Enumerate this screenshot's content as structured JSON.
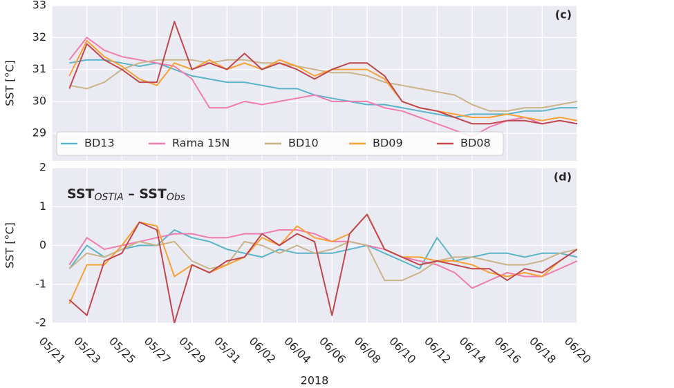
{
  "chart_data": [
    {
      "type": "line",
      "panel_label": "(c)",
      "ylabel": "SST [°C]",
      "x": [
        1,
        2,
        3,
        4,
        5,
        6,
        7,
        8,
        9,
        10,
        11,
        12,
        13,
        14,
        15,
        16,
        17,
        18,
        19,
        20,
        21,
        22,
        23,
        24,
        25,
        26,
        27,
        28,
        29,
        30
      ],
      "xlim": [
        0,
        30
      ],
      "xticks": [
        0,
        2,
        4,
        6,
        8,
        10,
        12,
        14,
        16,
        18,
        20,
        22,
        24,
        26,
        28,
        30
      ],
      "ylim": [
        28.14,
        33
      ],
      "yticks": [
        29,
        30,
        31,
        32,
        33
      ],
      "grid": true,
      "legend": "lower left",
      "series": [
        {
          "name": "BD13",
          "color": "#5ab4c8",
          "values": [
            31.2,
            31.3,
            31.3,
            31.2,
            31.1,
            31.2,
            31.0,
            30.8,
            30.7,
            30.6,
            30.6,
            30.5,
            30.4,
            30.4,
            30.2,
            30.1,
            30.0,
            29.9,
            29.9,
            29.8,
            29.7,
            29.6,
            29.5,
            29.6,
            29.6,
            29.6,
            29.7,
            29.7,
            29.8,
            29.8
          ]
        },
        {
          "name": "Rama 15N",
          "color": "#f07cb0",
          "values": [
            31.3,
            32.0,
            31.6,
            31.4,
            31.3,
            31.2,
            31.1,
            30.7,
            29.8,
            29.8,
            30.0,
            29.9,
            30.0,
            30.1,
            30.2,
            30.0,
            30.0,
            30.0,
            29.8,
            29.7,
            29.5,
            29.3,
            29.1,
            28.9,
            29.2,
            29.4,
            29.5,
            29.3,
            29.4,
            29.3
          ]
        },
        {
          "name": "BD10",
          "color": "#c9b48a",
          "values": [
            30.5,
            30.4,
            30.6,
            31.0,
            31.2,
            31.3,
            31.3,
            31.3,
            31.2,
            31.3,
            31.3,
            31.2,
            31.2,
            31.1,
            31.0,
            30.9,
            30.9,
            30.8,
            30.6,
            30.5,
            30.4,
            30.3,
            30.2,
            29.9,
            29.7,
            29.7,
            29.8,
            29.8,
            29.9,
            30.0
          ]
        },
        {
          "name": "BD09",
          "color": "#f7a035",
          "values": [
            30.8,
            31.9,
            31.4,
            31.1,
            30.7,
            30.5,
            31.2,
            31.0,
            31.3,
            31.0,
            31.2,
            31.0,
            31.3,
            31.1,
            30.8,
            31.0,
            31.0,
            31.0,
            30.7,
            30.0,
            29.8,
            29.7,
            29.6,
            29.5,
            29.5,
            29.6,
            29.5,
            29.4,
            29.5,
            29.4
          ]
        },
        {
          "name": "BD08",
          "color": "#c0464e",
          "values": [
            30.4,
            31.8,
            31.3,
            31.0,
            30.6,
            30.6,
            32.5,
            31.0,
            31.2,
            31.0,
            31.5,
            31.0,
            31.2,
            31.0,
            30.7,
            31.0,
            31.2,
            31.2,
            30.8,
            30.0,
            29.8,
            29.7,
            29.5,
            29.3,
            29.3,
            29.4,
            29.4,
            29.3,
            29.4,
            29.3
          ]
        }
      ]
    },
    {
      "type": "line",
      "panel_label": "(d)",
      "ylabel": "SST [°C]",
      "xlabel": "2018",
      "annotation_parts": [
        "SST",
        "OSTIA",
        " – ",
        "SST",
        "Obs"
      ],
      "x": [
        1,
        2,
        3,
        4,
        5,
        6,
        7,
        8,
        9,
        10,
        11,
        12,
        13,
        14,
        15,
        16,
        17,
        18,
        19,
        20,
        21,
        22,
        23,
        24,
        25,
        26,
        27,
        28,
        29,
        30
      ],
      "xlim": [
        0,
        30
      ],
      "xticks": [
        {
          "value": 0,
          "label": "05/21"
        },
        {
          "value": 2,
          "label": "05/23"
        },
        {
          "value": 4,
          "label": "05/25"
        },
        {
          "value": 6,
          "label": "05/27"
        },
        {
          "value": 8,
          "label": "05/29"
        },
        {
          "value": 10,
          "label": "05/31"
        },
        {
          "value": 12,
          "label": "06/02"
        },
        {
          "value": 14,
          "label": "06/04"
        },
        {
          "value": 16,
          "label": "06/06"
        },
        {
          "value": 18,
          "label": "06/08"
        },
        {
          "value": 20,
          "label": "06/10"
        },
        {
          "value": 22,
          "label": "06/12"
        },
        {
          "value": 24,
          "label": "06/14"
        },
        {
          "value": 26,
          "label": "06/16"
        },
        {
          "value": 28,
          "label": "06/18"
        },
        {
          "value": 30,
          "label": "06/20"
        }
      ],
      "ylim": [
        -2,
        2
      ],
      "yticks": [
        -2,
        -1,
        0,
        1,
        2
      ],
      "grid": true,
      "series": [
        {
          "name": "BD13",
          "color": "#5ab4c8",
          "values": [
            -0.6,
            0.0,
            -0.3,
            -0.1,
            0.0,
            0.0,
            0.4,
            0.2,
            0.1,
            -0.1,
            -0.2,
            -0.3,
            -0.1,
            -0.2,
            -0.2,
            -0.2,
            -0.1,
            0.0,
            -0.2,
            -0.4,
            -0.6,
            0.2,
            -0.4,
            -0.3,
            -0.2,
            -0.2,
            -0.3,
            -0.2,
            -0.2,
            -0.3
          ]
        },
        {
          "name": "Rama 15N",
          "color": "#f07cb0",
          "values": [
            -0.5,
            0.2,
            -0.1,
            0.0,
            0.1,
            0.2,
            0.3,
            0.3,
            0.2,
            0.2,
            0.3,
            0.3,
            0.4,
            0.4,
            0.3,
            0.1,
            0.1,
            0.0,
            -0.1,
            -0.3,
            -0.4,
            -0.5,
            -0.7,
            -1.1,
            -0.9,
            -0.7,
            -0.8,
            -0.8,
            -0.6,
            -0.4
          ]
        },
        {
          "name": "BD10",
          "color": "#c9b48a",
          "values": [
            -0.6,
            -0.2,
            -0.3,
            -0.1,
            0.1,
            0.0,
            0.1,
            -0.4,
            -0.6,
            -0.5,
            0.1,
            0.0,
            -0.2,
            0.0,
            -0.2,
            -0.1,
            0.1,
            0.0,
            -0.9,
            -0.9,
            -0.7,
            -0.4,
            -0.3,
            -0.3,
            -0.4,
            -0.5,
            -0.5,
            -0.4,
            -0.2,
            -0.1
          ]
        },
        {
          "name": "BD09",
          "color": "#f7a035",
          "values": [
            -1.5,
            -0.5,
            -0.5,
            0.0,
            0.6,
            0.5,
            -0.8,
            -0.5,
            -0.7,
            -0.5,
            -0.3,
            0.2,
            0.0,
            0.5,
            0.2,
            0.1,
            0.3,
            0.8,
            -0.1,
            -0.3,
            -0.3,
            -0.4,
            -0.4,
            -0.5,
            -0.7,
            -0.8,
            -0.7,
            -0.8,
            -0.4,
            -0.1
          ]
        },
        {
          "name": "BD08",
          "color": "#c0464e",
          "values": [
            -1.4,
            -1.8,
            -0.4,
            -0.2,
            0.6,
            0.4,
            -2.0,
            -0.5,
            -0.7,
            -0.4,
            -0.3,
            0.3,
            0.0,
            0.3,
            0.1,
            -1.8,
            0.3,
            0.8,
            -0.1,
            -0.3,
            -0.5,
            -0.4,
            -0.5,
            -0.6,
            -0.6,
            -0.9,
            -0.6,
            -0.7,
            -0.4,
            -0.1
          ]
        }
      ]
    }
  ]
}
